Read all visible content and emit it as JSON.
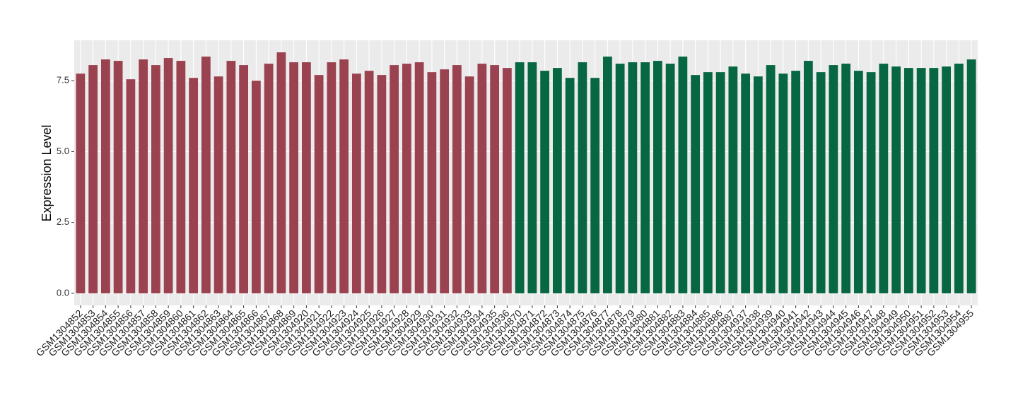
{
  "chart_data": {
    "type": "bar",
    "y_label": "Expression Level",
    "categories": [
      "GSM1304852",
      "GSM1304853",
      "GSM1304854",
      "GSM1304855",
      "GSM1304856",
      "GSM1304857",
      "GSM1304858",
      "GSM1304859",
      "GSM1304860",
      "GSM1304861",
      "GSM1304862",
      "GSM1304863",
      "GSM1304864",
      "GSM1304865",
      "GSM1304866",
      "GSM1304867",
      "GSM1304868",
      "GSM1304869",
      "GSM1304920",
      "GSM1304921",
      "GSM1304922",
      "GSM1304923",
      "GSM1304924",
      "GSM1304925",
      "GSM1304926",
      "GSM1304927",
      "GSM1304928",
      "GSM1304929",
      "GSM1304930",
      "GSM1304931",
      "GSM1304932",
      "GSM1304933",
      "GSM1304934",
      "GSM1304935",
      "GSM1304936",
      "GSM1304870",
      "GSM1304871",
      "GSM1304872",
      "GSM1304873",
      "GSM1304874",
      "GSM1304875",
      "GSM1304876",
      "GSM1304877",
      "GSM1304878",
      "GSM1304879",
      "GSM1304880",
      "GSM1304881",
      "GSM1304882",
      "GSM1304883",
      "GSM1304884",
      "GSM1304885",
      "GSM1304886",
      "GSM1304887",
      "GSM1304937",
      "GSM1304938",
      "GSM1304939",
      "GSM1304940",
      "GSM1304941",
      "GSM1304942",
      "GSM1304943",
      "GSM1304944",
      "GSM1304945",
      "GSM1304946",
      "GSM1304947",
      "GSM1304948",
      "GSM1304949",
      "GSM1304950",
      "GSM1304951",
      "GSM1304952",
      "GSM1304953",
      "GSM1304954",
      "GSM1304955"
    ],
    "values": [
      7.75,
      8.05,
      8.25,
      8.2,
      7.55,
      8.25,
      8.05,
      8.3,
      8.2,
      7.6,
      8.35,
      7.65,
      8.2,
      8.05,
      7.5,
      8.1,
      8.5,
      8.15,
      8.15,
      7.7,
      8.15,
      8.25,
      7.75,
      7.85,
      7.7,
      8.05,
      8.1,
      8.15,
      7.8,
      7.9,
      8.05,
      7.65,
      8.1,
      8.05,
      7.95,
      8.15,
      8.15,
      7.85,
      7.95,
      7.6,
      8.15,
      7.6,
      8.35,
      8.1,
      8.15,
      8.15,
      8.2,
      8.1,
      8.35,
      7.7,
      7.8,
      7.8,
      8.0,
      7.75,
      7.65,
      8.05,
      7.75,
      7.85,
      8.2,
      7.8,
      8.05,
      8.1,
      7.85,
      7.8,
      8.1,
      8.0,
      7.95,
      7.95,
      7.95,
      8.0,
      8.1,
      8.25
    ],
    "colors": [
      "#9b4250",
      "#9b4250",
      "#9b4250",
      "#9b4250",
      "#9b4250",
      "#9b4250",
      "#9b4250",
      "#9b4250",
      "#9b4250",
      "#9b4250",
      "#9b4250",
      "#9b4250",
      "#9b4250",
      "#9b4250",
      "#9b4250",
      "#9b4250",
      "#9b4250",
      "#9b4250",
      "#9b4250",
      "#9b4250",
      "#9b4250",
      "#9b4250",
      "#9b4250",
      "#9b4250",
      "#9b4250",
      "#9b4250",
      "#9b4250",
      "#9b4250",
      "#9b4250",
      "#9b4250",
      "#9b4250",
      "#9b4250",
      "#9b4250",
      "#9b4250",
      "#9b4250",
      "#066742",
      "#066742",
      "#066742",
      "#066742",
      "#066742",
      "#066742",
      "#066742",
      "#066742",
      "#066742",
      "#066742",
      "#066742",
      "#066742",
      "#066742",
      "#066742",
      "#066742",
      "#066742",
      "#066742",
      "#066742",
      "#066742",
      "#066742",
      "#066742",
      "#066742",
      "#066742",
      "#066742",
      "#066742",
      "#066742",
      "#066742",
      "#066742",
      "#066742",
      "#066742",
      "#066742",
      "#066742",
      "#066742",
      "#066742",
      "#066742",
      "#066742",
      "#066742"
    ],
    "ylim": [
      -0.425,
      8.925
    ],
    "yticks": [
      {
        "value": 0,
        "label": "0.0"
      },
      2.5,
      {
        "value": 5,
        "label": "5.0"
      },
      7.5
    ],
    "grid": true
  }
}
